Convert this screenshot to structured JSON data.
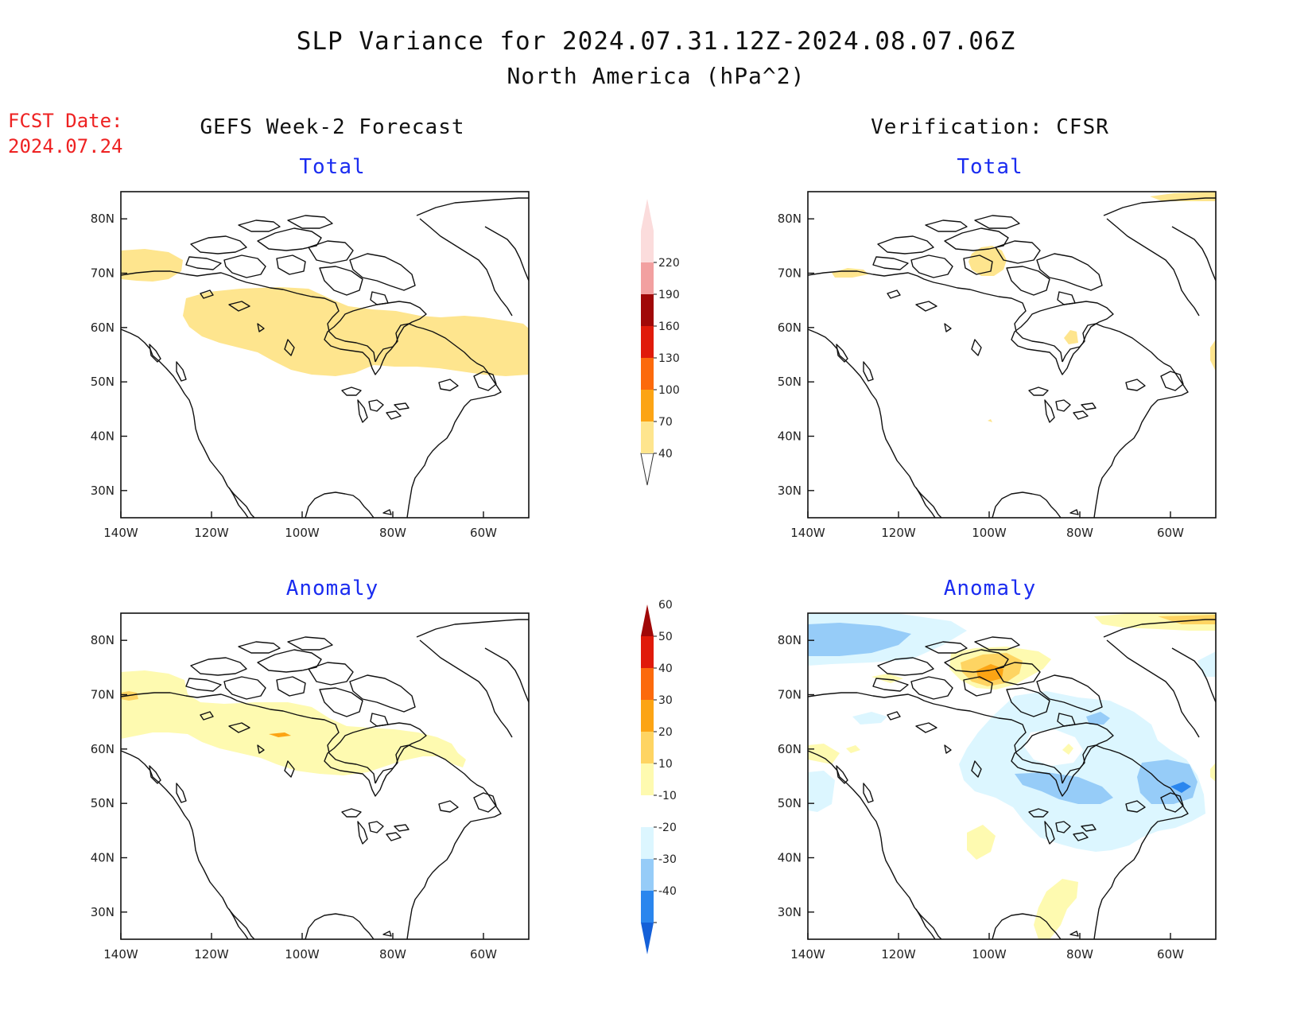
{
  "title": "SLP Variance for 2024.07.31.12Z-2024.08.07.06Z",
  "subtitle": "North America (hPa^2)",
  "fcst_label": "FCST Date:",
  "fcst_date": "2024.07.24",
  "left_header": "GEFS Week-2 Forecast",
  "right_header": "Verification: CFSR",
  "panel_titles": {
    "total": "Total",
    "anomaly": "Anomaly"
  },
  "chart_data": {
    "type": "heatmap",
    "map_extent": {
      "lon": [
        -140,
        -50
      ],
      "lat": [
        25,
        85
      ]
    },
    "x_ticks": [
      "140W",
      "120W",
      "100W",
      "80W",
      "60W"
    ],
    "y_ticks": [
      "80N",
      "70N",
      "60N",
      "50N",
      "40N",
      "30N"
    ],
    "colorbars": {
      "total": {
        "levels": [
          40,
          70,
          100,
          130,
          160,
          190,
          220
        ],
        "colors": [
          "#fee58e",
          "#fca414",
          "#fc6a0c",
          "#e01a0a",
          "#a00808",
          "#f2a0a0",
          "#fbdcdc"
        ]
      },
      "anomaly": {
        "levels": [
          -40,
          -30,
          -20,
          -10,
          10,
          20,
          30,
          40,
          50,
          60
        ],
        "colors": [
          "#1460d8",
          "#2a86ee",
          "#96ccf8",
          "#dcf6ff",
          "#ffffff",
          "#fefab0",
          "#fed462",
          "#fca414",
          "#fc6a0c",
          "#e01a0a",
          "#a00808"
        ]
      }
    },
    "panels": [
      {
        "position": "top-left",
        "model": "GEFS Week-2 Forecast",
        "field": "Total",
        "features": [
          {
            "lon": -107,
            "lat": 58,
            "value_range": [
              40,
              70
            ]
          },
          {
            "lon": -135,
            "lat": 72,
            "value_range": [
              40,
              70
            ]
          }
        ]
      },
      {
        "position": "top-right",
        "model": "Verification: CFSR",
        "field": "Total",
        "features": [
          {
            "lon": -100,
            "lat": 72,
            "value_range": [
              40,
              70
            ]
          },
          {
            "lon": -81,
            "lat": 58,
            "value_range": [
              40,
              70
            ]
          },
          {
            "lon": -128,
            "lat": 70,
            "value_range": [
              40,
              70
            ]
          },
          {
            "lon": -65,
            "lat": 85,
            "value_range": [
              40,
              70
            ]
          }
        ]
      },
      {
        "position": "bottom-left",
        "model": "GEFS Week-2 Forecast",
        "field": "Anomaly",
        "features": [
          {
            "lon": -107,
            "lat": 60,
            "value_range": [
              10,
              20
            ]
          },
          {
            "lon": -139,
            "lat": 70,
            "value_range": [
              20,
              30
            ]
          },
          {
            "lon": -107,
            "lat": 62,
            "value_range": [
              20,
              30
            ]
          }
        ]
      },
      {
        "position": "bottom-right",
        "model": "Verification: CFSR",
        "field": "Anomaly",
        "features": [
          {
            "lon": -100,
            "lat": 72,
            "value_range": [
              20,
              40
            ]
          },
          {
            "lon": -130,
            "lat": 81,
            "value_range": [
              -30,
              -20
            ]
          },
          {
            "lon": -78,
            "lat": 53,
            "value_range": [
              -20,
              -10
            ]
          },
          {
            "lon": -59,
            "lat": 53,
            "value_range": [
              -40,
              -30
            ]
          },
          {
            "lon": -80,
            "lat": 33,
            "value_range": [
              10,
              20
            ]
          },
          {
            "lon": -72,
            "lat": 85,
            "value_range": [
              10,
              30
            ]
          }
        ]
      }
    ]
  }
}
